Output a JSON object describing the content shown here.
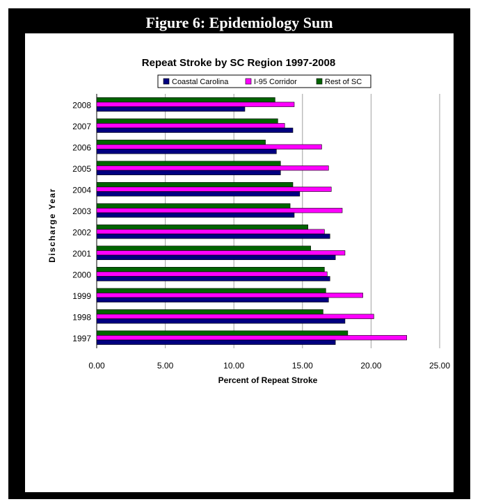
{
  "figure_title": "Figure 6: Epidemiology Sum",
  "chart_data": {
    "type": "bar",
    "orientation": "horizontal",
    "title": "Repeat Stroke by SC Region 1997-2008",
    "xlabel": "Percent of Repeat Stroke",
    "ylabel": "Discharge Year",
    "xlim": [
      0,
      25
    ],
    "x_ticks": [
      "0.00",
      "5.00",
      "10.00",
      "15.00",
      "20.00",
      "25.00"
    ],
    "grid": "vertical",
    "legend_position": "top",
    "categories": [
      "2008",
      "2007",
      "2006",
      "2005",
      "2004",
      "2003",
      "2002",
      "2001",
      "2000",
      "1999",
      "1998",
      "1997"
    ],
    "series": [
      {
        "name": "Coastal Carolina",
        "color": "#000080",
        "values": [
          10.8,
          14.3,
          13.1,
          13.4,
          14.8,
          14.4,
          17.0,
          17.4,
          17.0,
          16.9,
          18.1,
          17.4
        ]
      },
      {
        "name": "I-95 Corridor",
        "color": "#ff00ff",
        "values": [
          14.4,
          13.7,
          16.4,
          16.9,
          17.1,
          17.9,
          16.6,
          18.1,
          16.8,
          19.4,
          20.2,
          22.6
        ]
      },
      {
        "name": "Rest of SC",
        "color": "#006400",
        "values": [
          13.0,
          13.2,
          12.3,
          13.4,
          14.3,
          14.1,
          15.4,
          15.6,
          16.6,
          16.7,
          16.5,
          18.3
        ]
      }
    ]
  }
}
